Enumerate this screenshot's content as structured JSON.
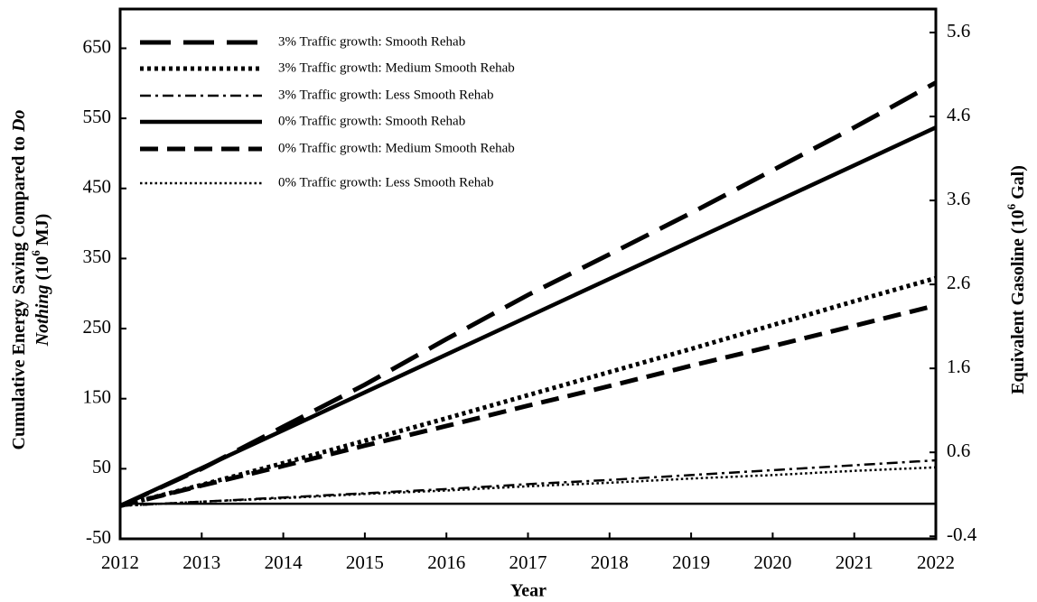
{
  "chart_data": {
    "type": "line",
    "x_label": "Year",
    "y_label_parts": [
      "Cumulative Energy Saving Compared to ",
      "Do",
      "Nothing",
      " (10",
      "6",
      " MJ)"
    ],
    "y2_label_parts": [
      "Equivalent Gasoline (10",
      "6",
      " Gal)"
    ],
    "x": [
      2012,
      2013,
      2014,
      2015,
      2016,
      2017,
      2018,
      2019,
      2020,
      2021,
      2022
    ],
    "xlim": [
      2012,
      2022
    ],
    "xticks": [
      2012,
      2013,
      2014,
      2015,
      2016,
      2017,
      2018,
      2019,
      2020,
      2021,
      2022
    ],
    "ylim": [
      -50,
      706
    ],
    "yticks": [
      -50,
      50,
      150,
      250,
      350,
      450,
      550,
      650
    ],
    "y2lim": [
      -0.43,
      5.88
    ],
    "y2ticks": [
      -0.4,
      0.6,
      1.6,
      2.6,
      3.6,
      4.6,
      5.6
    ],
    "legend": "upper left",
    "series": [
      {
        "name": "3% Traffic growth: Smooth Rehab",
        "color": "#000000",
        "style": "long-dash",
        "values": [
          -3,
          50,
          110,
          170,
          235,
          298,
          356,
          415,
          476,
          537,
          601
        ]
      },
      {
        "name": "3% Traffic growth: Medium Smooth Rehab",
        "color": "#000000",
        "style": "heavy-dot",
        "values": [
          -3,
          27,
          58,
          90,
          122,
          155,
          188,
          221,
          255,
          289,
          322
        ]
      },
      {
        "name": "3% Traffic growth: Less Smooth Rehab",
        "color": "#000000",
        "style": "dash-dot",
        "values": [
          -3,
          3,
          9,
          15,
          21,
          28,
          34,
          41,
          48,
          55,
          62
        ]
      },
      {
        "name": "0% Traffic growth: Smooth Rehab",
        "color": "#000000",
        "style": "solid",
        "values": [
          -3,
          51,
          105,
          159,
          213,
          267,
          321,
          375,
          429,
          483,
          537
        ]
      },
      {
        "name": "0% Traffic growth: Medium Smooth Rehab",
        "color": "#000000",
        "style": "dash",
        "values": [
          -3,
          26,
          54,
          83,
          111,
          140,
          168,
          197,
          225,
          254,
          283
        ]
      },
      {
        "name": "0% Traffic growth: Less Smooth Rehab",
        "color": "#000000",
        "style": "fine-dot",
        "values": [
          -3,
          3,
          8,
          14,
          19,
          25,
          30,
          36,
          41,
          47,
          52
        ]
      }
    ]
  }
}
